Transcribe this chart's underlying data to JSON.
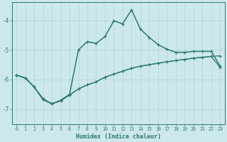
{
  "xlabel": "Humidex (Indice chaleur)",
  "bg_color": "#cce8ec",
  "line_color": "#2d7a6b",
  "grid_color": "#b0d4da",
  "xlim": [
    -0.5,
    23.5
  ],
  "ylim": [
    -7.5,
    -3.4
  ],
  "yticks": [
    -7,
    -6,
    -5,
    -4
  ],
  "xticks": [
    0,
    1,
    2,
    3,
    4,
    5,
    6,
    7,
    8,
    9,
    10,
    11,
    12,
    13,
    14,
    15,
    16,
    17,
    18,
    19,
    20,
    21,
    22,
    23
  ],
  "line1_x": [
    0,
    1,
    2,
    3,
    4,
    5,
    6,
    7,
    8,
    9,
    10,
    11,
    12,
    13,
    14,
    15,
    16,
    17,
    18,
    19,
    20,
    21,
    22,
    23
  ],
  "line1_y": [
    -5.85,
    -5.95,
    -6.25,
    -6.65,
    -6.82,
    -6.72,
    -6.52,
    -6.32,
    -6.18,
    -6.08,
    -5.92,
    -5.82,
    -5.72,
    -5.62,
    -5.55,
    -5.5,
    -5.45,
    -5.4,
    -5.36,
    -5.32,
    -5.28,
    -5.25,
    -5.22,
    -5.2
  ],
  "line2_x": [
    0,
    1,
    2,
    3,
    4,
    5,
    6,
    7,
    8,
    9,
    10,
    11,
    12,
    13,
    14,
    15,
    16,
    17,
    18,
    19,
    20,
    21,
    22,
    23
  ],
  "line2_y": [
    -5.85,
    -5.95,
    -6.25,
    -6.65,
    -6.82,
    -6.72,
    -6.52,
    -6.32,
    -6.18,
    -6.08,
    -5.92,
    -5.82,
    -5.72,
    -5.62,
    -5.55,
    -5.5,
    -5.45,
    -5.4,
    -5.36,
    -5.32,
    -5.28,
    -5.25,
    -5.22,
    -5.6
  ],
  "main_x": [
    0,
    1,
    2,
    3,
    4,
    5,
    6,
    7,
    8,
    9,
    10,
    11,
    12,
    13,
    14,
    15,
    16,
    17,
    18,
    19,
    20,
    21,
    22,
    23
  ],
  "main_y": [
    -5.85,
    -5.95,
    -6.25,
    -6.68,
    -6.82,
    -6.7,
    -6.5,
    -5.0,
    -4.72,
    -4.78,
    -4.55,
    -4.02,
    -4.12,
    -3.65,
    -4.3,
    -4.58,
    -4.82,
    -4.98,
    -5.08,
    -5.08,
    -5.05,
    -5.05,
    -5.05,
    -5.55
  ]
}
